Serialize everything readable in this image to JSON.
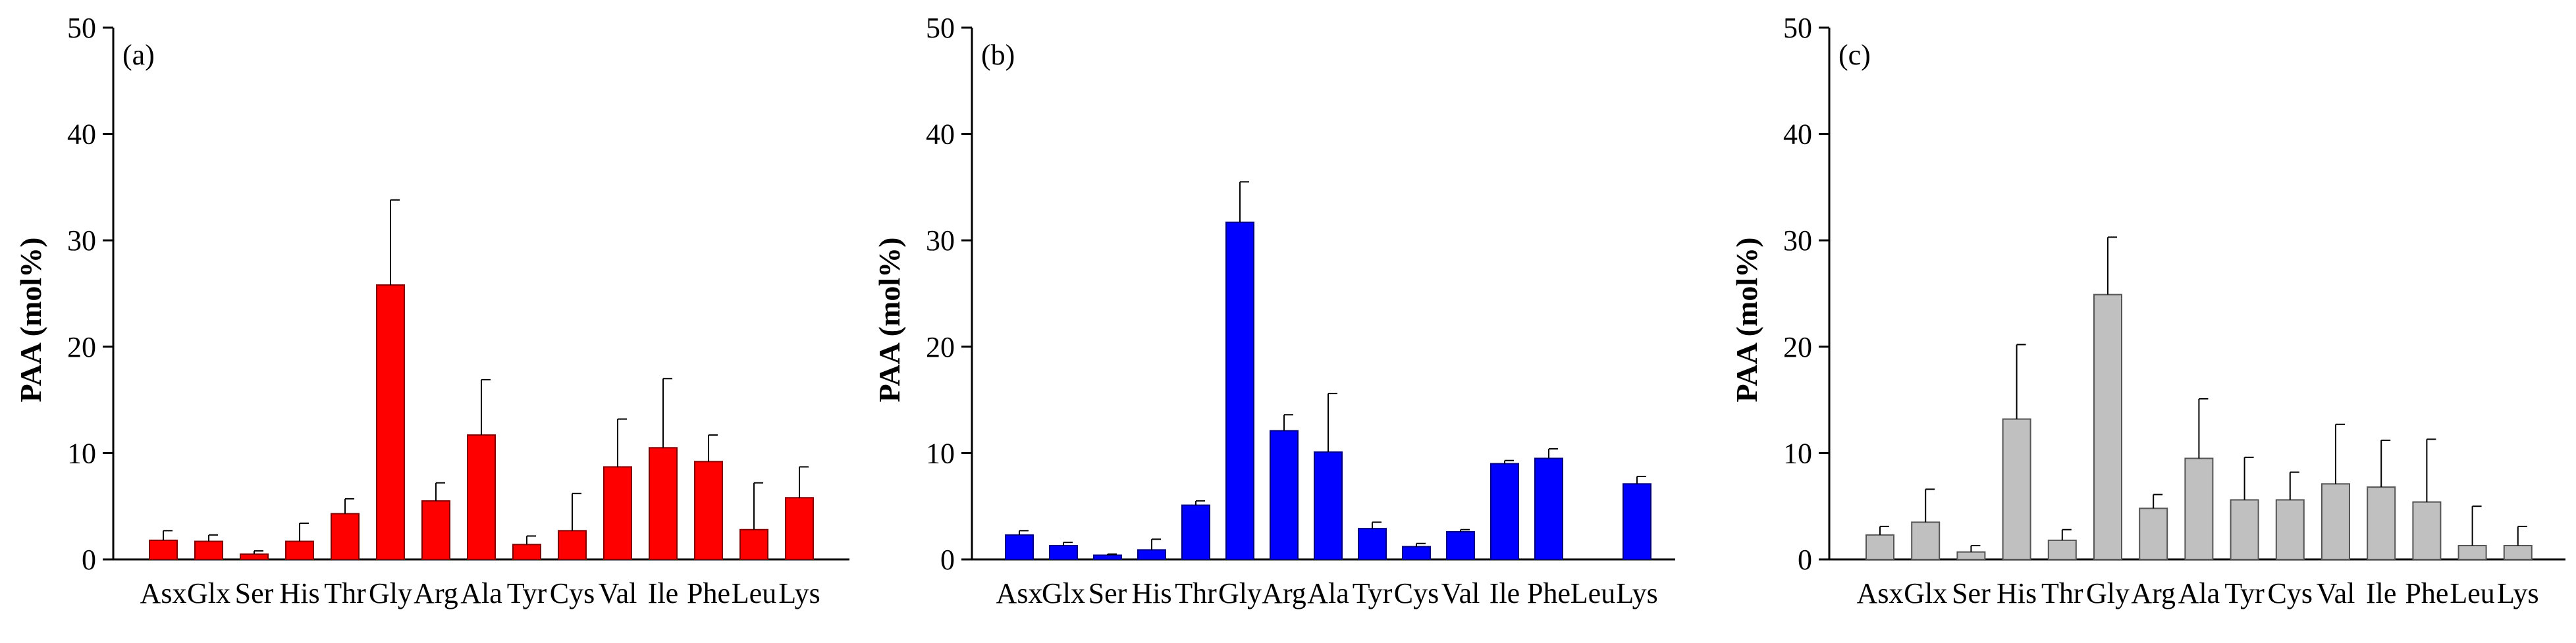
{
  "chart_data": [
    {
      "type": "bar",
      "panel_label": "(a)",
      "ylabel": "PAA (mol%)",
      "ylim": [
        0,
        50
      ],
      "yticks": [
        "0",
        "10",
        "20",
        "30",
        "40",
        "50"
      ],
      "categories": [
        "Asx",
        "Glx",
        "Ser",
        "His",
        "Thr",
        "Gly",
        "Arg",
        "Ala",
        "Tyr",
        "Cys",
        "Val",
        "Ile",
        "Phe",
        "Leu",
        "Lys"
      ],
      "values": [
        1.8,
        1.7,
        0.5,
        1.7,
        4.3,
        25.8,
        5.5,
        11.7,
        1.4,
        2.7,
        8.7,
        10.5,
        9.2,
        2.8,
        5.8
      ],
      "errors": [
        0.9,
        0.6,
        0.3,
        1.7,
        1.4,
        8.0,
        1.7,
        5.2,
        0.8,
        3.5,
        4.5,
        6.5,
        2.5,
        4.4,
        2.9
      ],
      "color": "#ff0000",
      "grid": false,
      "legend": "none"
    },
    {
      "type": "bar",
      "panel_label": "(b)",
      "ylabel": "PAA (mol%)",
      "ylim": [
        0,
        50
      ],
      "yticks": [
        "0",
        "10",
        "20",
        "30",
        "40",
        "50"
      ],
      "categories": [
        "Asx",
        "Glx",
        "Ser",
        "His",
        "Thr",
        "Gly",
        "Arg",
        "Ala",
        "Tyr",
        "Cys",
        "Val",
        "Ile",
        "Phe",
        "Leu",
        "Lys"
      ],
      "values": [
        2.3,
        1.3,
        0.4,
        0.9,
        5.1,
        31.7,
        12.1,
        10.1,
        2.9,
        1.2,
        2.6,
        9.0,
        9.5,
        0.0,
        7.1
      ],
      "errors": [
        0.4,
        0.3,
        0.1,
        1.0,
        0.4,
        3.8,
        1.5,
        5.5,
        0.6,
        0.3,
        0.2,
        0.3,
        0.9,
        0.0,
        0.7
      ],
      "color": "#0000ff",
      "grid": false,
      "legend": "none"
    },
    {
      "type": "bar",
      "panel_label": "(c)",
      "ylabel": "PAA (mol%)",
      "ylim": [
        0,
        50
      ],
      "yticks": [
        "0",
        "10",
        "20",
        "30",
        "40",
        "50"
      ],
      "categories": [
        "Asx",
        "Glx",
        "Ser",
        "His",
        "Thr",
        "Gly",
        "Arg",
        "Ala",
        "Tyr",
        "Cys",
        "Val",
        "Ile",
        "Phe",
        "Leu",
        "Lys"
      ],
      "values": [
        2.3,
        3.5,
        0.7,
        13.2,
        1.8,
        24.9,
        4.8,
        9.5,
        5.6,
        5.6,
        7.1,
        6.8,
        5.4,
        1.3,
        1.3
      ],
      "errors": [
        0.8,
        3.1,
        0.6,
        7.0,
        1.0,
        5.4,
        1.3,
        5.6,
        4.0,
        2.6,
        5.6,
        4.4,
        5.9,
        3.7,
        1.8
      ],
      "color": "#c0c0c0",
      "grid": false,
      "legend": "none"
    }
  ]
}
